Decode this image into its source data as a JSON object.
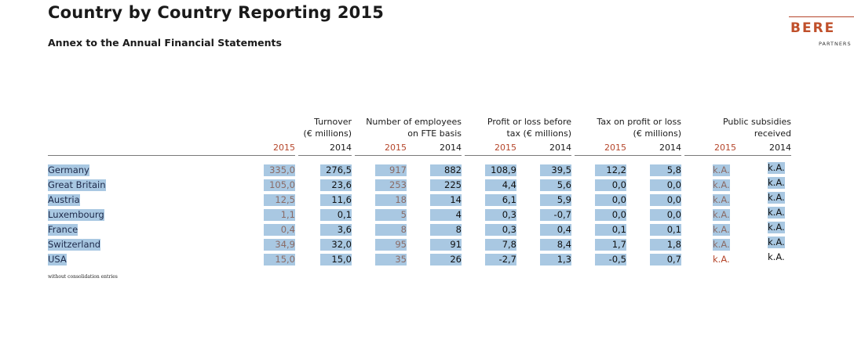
{
  "title": "Country by Country Reporting 2015",
  "subtitle": "Annex to the Annual Financial Statements",
  "logo": {
    "text": "BERE",
    "sub": "PARTNERS",
    "color": "#c0502b"
  },
  "headers": {
    "turnover": [
      "Turnover",
      "(€ millions)"
    ],
    "employees": [
      "Number of employees",
      "on FTE basis"
    ],
    "profit": [
      "Profit or loss before",
      "tax (€ millions)"
    ],
    "tax": [
      "Tax on profit or loss",
      "(€ millions)"
    ],
    "subsidies": [
      "Public subsidies",
      "received"
    ]
  },
  "years": {
    "y2015": "2015",
    "y2014": "2014"
  },
  "rows": [
    {
      "country": "Germany",
      "turnover": [
        "335,0",
        "276,5"
      ],
      "employees": [
        "917",
        "882"
      ],
      "profit": [
        "108,9",
        "39,5"
      ],
      "tax": [
        "12,2",
        "5,8"
      ],
      "subsidies": [
        "k.A.",
        "k.A."
      ]
    },
    {
      "country": "Great Britain",
      "turnover": [
        "105,0",
        "23,6"
      ],
      "employees": [
        "253",
        "225"
      ],
      "profit": [
        "4,4",
        "5,6"
      ],
      "tax": [
        "0,0",
        "0,0"
      ],
      "subsidies": [
        "k.A.",
        "k.A."
      ]
    },
    {
      "country": "Austria",
      "turnover": [
        "12,5",
        "11,6"
      ],
      "employees": [
        "18",
        "14"
      ],
      "profit": [
        "6,1",
        "5,9"
      ],
      "tax": [
        "0,0",
        "0,0"
      ],
      "subsidies": [
        "k.A.",
        "k.A."
      ]
    },
    {
      "country": "Luxembourg",
      "turnover": [
        "1,1",
        "0,1"
      ],
      "employees": [
        "5",
        "4"
      ],
      "profit": [
        "0,3",
        "-0,7"
      ],
      "tax": [
        "0,0",
        "0,0"
      ],
      "subsidies": [
        "k.A.",
        "k.A."
      ]
    },
    {
      "country": "France",
      "turnover": [
        "0,4",
        "3,6"
      ],
      "employees": [
        "8",
        "8"
      ],
      "profit": [
        "0,3",
        "0,4"
      ],
      "tax": [
        "0,1",
        "0,1"
      ],
      "subsidies": [
        "k.A.",
        "k.A."
      ]
    },
    {
      "country": "Switzerland",
      "turnover": [
        "34,9",
        "32,0"
      ],
      "employees": [
        "95",
        "91"
      ],
      "profit": [
        "7,8",
        "8,4"
      ],
      "tax": [
        "1,7",
        "1,8"
      ],
      "subsidies": [
        "k.A.",
        "k.A."
      ]
    },
    {
      "country": "USA",
      "turnover": [
        "15,0",
        "15,0"
      ],
      "employees": [
        "35",
        "26"
      ],
      "profit": [
        "-2,7",
        "1,3"
      ],
      "tax": [
        "-0,5",
        "0,7"
      ],
      "subsidies": [
        "k.A.",
        "k.A."
      ]
    }
  ],
  "footnote": "without consolidation entries"
}
